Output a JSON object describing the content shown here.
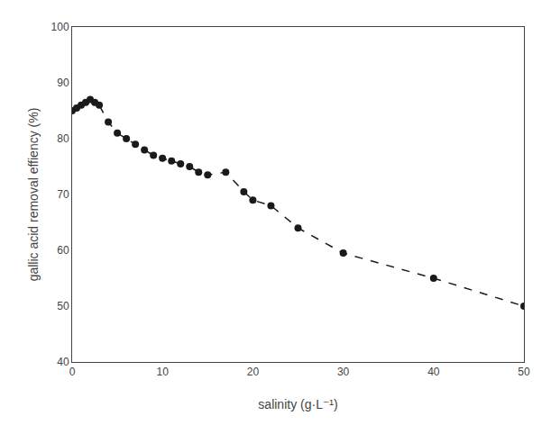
{
  "chart_data": {
    "type": "line",
    "x": [
      0,
      0.5,
      1,
      1.5,
      2,
      2.5,
      3,
      4,
      5,
      6,
      7,
      8,
      9,
      10,
      11,
      12,
      13,
      14,
      15,
      17,
      19,
      20,
      22,
      25,
      30,
      40,
      50
    ],
    "values": [
      85,
      85.5,
      86,
      86.5,
      87,
      86.5,
      86,
      83,
      81,
      80,
      79,
      78,
      77,
      76.5,
      76,
      75.5,
      75,
      74,
      73.5,
      74,
      70.5,
      69,
      68,
      64,
      59.5,
      55,
      50
    ],
    "xlabel": "salinity (g·L⁻¹)",
    "ylabel": "gallic acid removal effiency (%)",
    "xlim": [
      0,
      50
    ],
    "ylim": [
      40,
      100
    ],
    "xticks": [
      0,
      10,
      20,
      30,
      40,
      50
    ],
    "yticks": [
      40,
      50,
      60,
      70,
      80,
      90,
      100
    ],
    "color": "#1a1a1a",
    "marker": "circle",
    "line_style": "dashed",
    "grid": false
  }
}
